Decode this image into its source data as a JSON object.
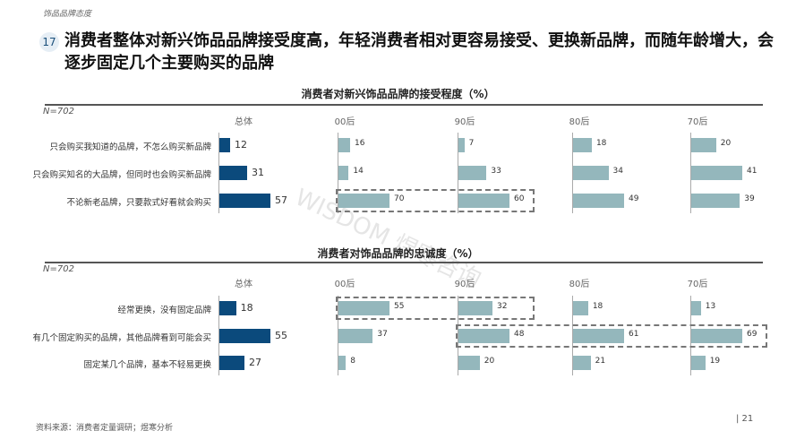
{
  "header": {
    "section": "饰品品牌态度",
    "number": "17",
    "title": "消费者整体对新兴饰品品牌接受度高，年轻消费者相对更容易接受、更换新品牌，而随年龄增大，会逐步固定几个主要购买的品牌"
  },
  "watermark": "WISDOM 煜寒咨询",
  "footer": {
    "source": "资料来源：消费者定量调研；煜寒分析",
    "page": "| 21"
  },
  "colors": {
    "overall": "#0b4a7c",
    "segment": "#94b7bc",
    "dash": "#777777"
  },
  "chart_data": [
    {
      "type": "bar",
      "orientation": "horizontal",
      "title": "消费者对新兴饰品品牌的接受程度（%）",
      "note": "N=702",
      "categories": [
        "只会购买我知道的品牌，不怎么购买新品牌",
        "只会购买知名的大品牌，但同时也会购买新品牌",
        "不论新老品牌，只要款式好看就会购买"
      ],
      "series": [
        {
          "name": "总体",
          "values": [
            12,
            31,
            57
          ]
        },
        {
          "name": "00后",
          "values": [
            16,
            14,
            70
          ]
        },
        {
          "name": "90后",
          "values": [
            7,
            33,
            60
          ]
        },
        {
          "name": "80后",
          "values": [
            18,
            34,
            49
          ]
        },
        {
          "name": "70后",
          "values": [
            20,
            41,
            39
          ]
        }
      ],
      "highlights": [
        {
          "row": 2,
          "from": "00后",
          "to": "90后"
        }
      ]
    },
    {
      "type": "bar",
      "orientation": "horizontal",
      "title": "消费者对饰品品牌的忠诚度（%）",
      "note": "N=702",
      "categories": [
        "经常更换，没有固定品牌",
        "有几个固定购买的品牌，其他品牌看到可能会买",
        "固定某几个品牌，基本不轻易更换"
      ],
      "series": [
        {
          "name": "总体",
          "values": [
            18,
            55,
            27
          ]
        },
        {
          "name": "00后",
          "values": [
            55,
            37,
            8
          ]
        },
        {
          "name": "90后",
          "values": [
            32,
            48,
            20
          ]
        },
        {
          "name": "80后",
          "values": [
            18,
            61,
            21
          ]
        },
        {
          "name": "70后",
          "values": [
            13,
            69,
            19
          ]
        }
      ],
      "highlights": [
        {
          "row": 0,
          "from": "00后",
          "to": "90后"
        },
        {
          "row": 1,
          "from": "90后",
          "to": "70后"
        }
      ]
    }
  ]
}
